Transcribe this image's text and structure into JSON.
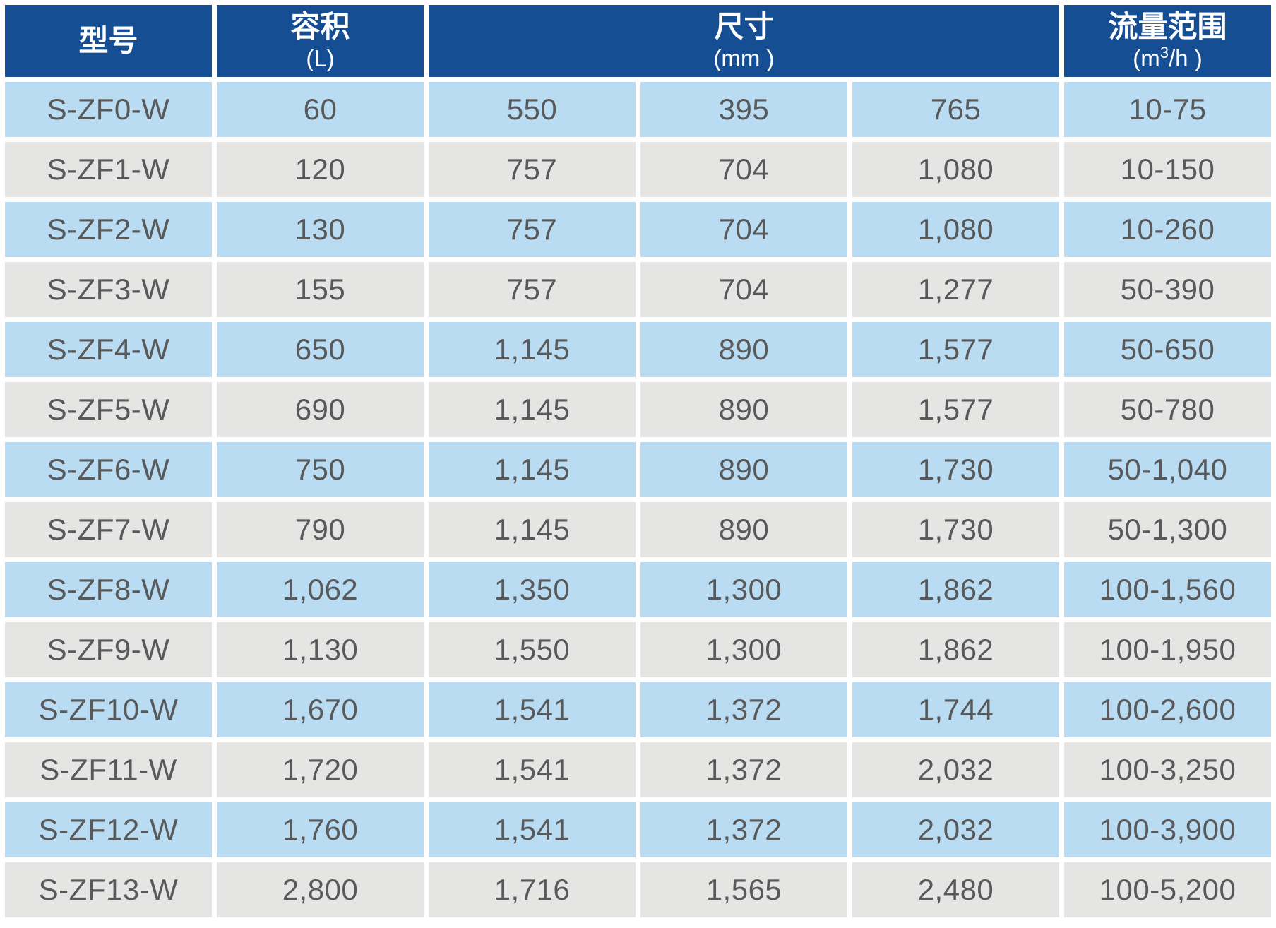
{
  "header": {
    "model": "型号",
    "volume_title": "容积",
    "volume_unit": "(L)",
    "size_title": "尺寸",
    "size_unit": "(mm )",
    "flow_title": "流量范围",
    "flow_unit_pre": "(m",
    "flow_unit_sup": "3",
    "flow_unit_post": "/h )"
  },
  "table": {
    "rows": [
      {
        "model": "S-ZF0-W",
        "volume": "60",
        "dim1": "550",
        "dim2": "395",
        "dim3": "765",
        "flow": "10-75"
      },
      {
        "model": "S-ZF1-W",
        "volume": "120",
        "dim1": "757",
        "dim2": "704",
        "dim3": "1,080",
        "flow": "10-150"
      },
      {
        "model": "S-ZF2-W",
        "volume": "130",
        "dim1": "757",
        "dim2": "704",
        "dim3": "1,080",
        "flow": "10-260"
      },
      {
        "model": "S-ZF3-W",
        "volume": "155",
        "dim1": "757",
        "dim2": "704",
        "dim3": "1,277",
        "flow": "50-390"
      },
      {
        "model": "S-ZF4-W",
        "volume": "650",
        "dim1": "1,145",
        "dim2": "890",
        "dim3": "1,577",
        "flow": "50-650"
      },
      {
        "model": "S-ZF5-W",
        "volume": "690",
        "dim1": "1,145",
        "dim2": "890",
        "dim3": "1,577",
        "flow": "50-780"
      },
      {
        "model": "S-ZF6-W",
        "volume": "750",
        "dim1": "1,145",
        "dim2": "890",
        "dim3": "1,730",
        "flow": "50-1,040"
      },
      {
        "model": "S-ZF7-W",
        "volume": "790",
        "dim1": "1,145",
        "dim2": "890",
        "dim3": "1,730",
        "flow": "50-1,300"
      },
      {
        "model": "S-ZF8-W",
        "volume": "1,062",
        "dim1": "1,350",
        "dim2": "1,300",
        "dim3": "1,862",
        "flow": "100-1,560"
      },
      {
        "model": "S-ZF9-W",
        "volume": "1,130",
        "dim1": "1,550",
        "dim2": "1,300",
        "dim3": "1,862",
        "flow": "100-1,950"
      },
      {
        "model": "S-ZF10-W",
        "volume": "1,670",
        "dim1": "1,541",
        "dim2": "1,372",
        "dim3": "1,744",
        "flow": "100-2,600"
      },
      {
        "model": "S-ZF11-W",
        "volume": "1,720",
        "dim1": "1,541",
        "dim2": "1,372",
        "dim3": "2,032",
        "flow": "100-3,250"
      },
      {
        "model": "S-ZF12-W",
        "volume": "1,760",
        "dim1": "1,541",
        "dim2": "1,372",
        "dim3": "2,032",
        "flow": "100-3,900"
      },
      {
        "model": "S-ZF13-W",
        "volume": "2,800",
        "dim1": "1,716",
        "dim2": "1,565",
        "dim3": "2,480",
        "flow": "100-5,200"
      }
    ]
  },
  "colors": {
    "header_bg": "#154e92",
    "row_blue": "#b9dcf2",
    "row_gray": "#e5e5e4",
    "text": "#58595b",
    "header_text": "#ffffff"
  }
}
